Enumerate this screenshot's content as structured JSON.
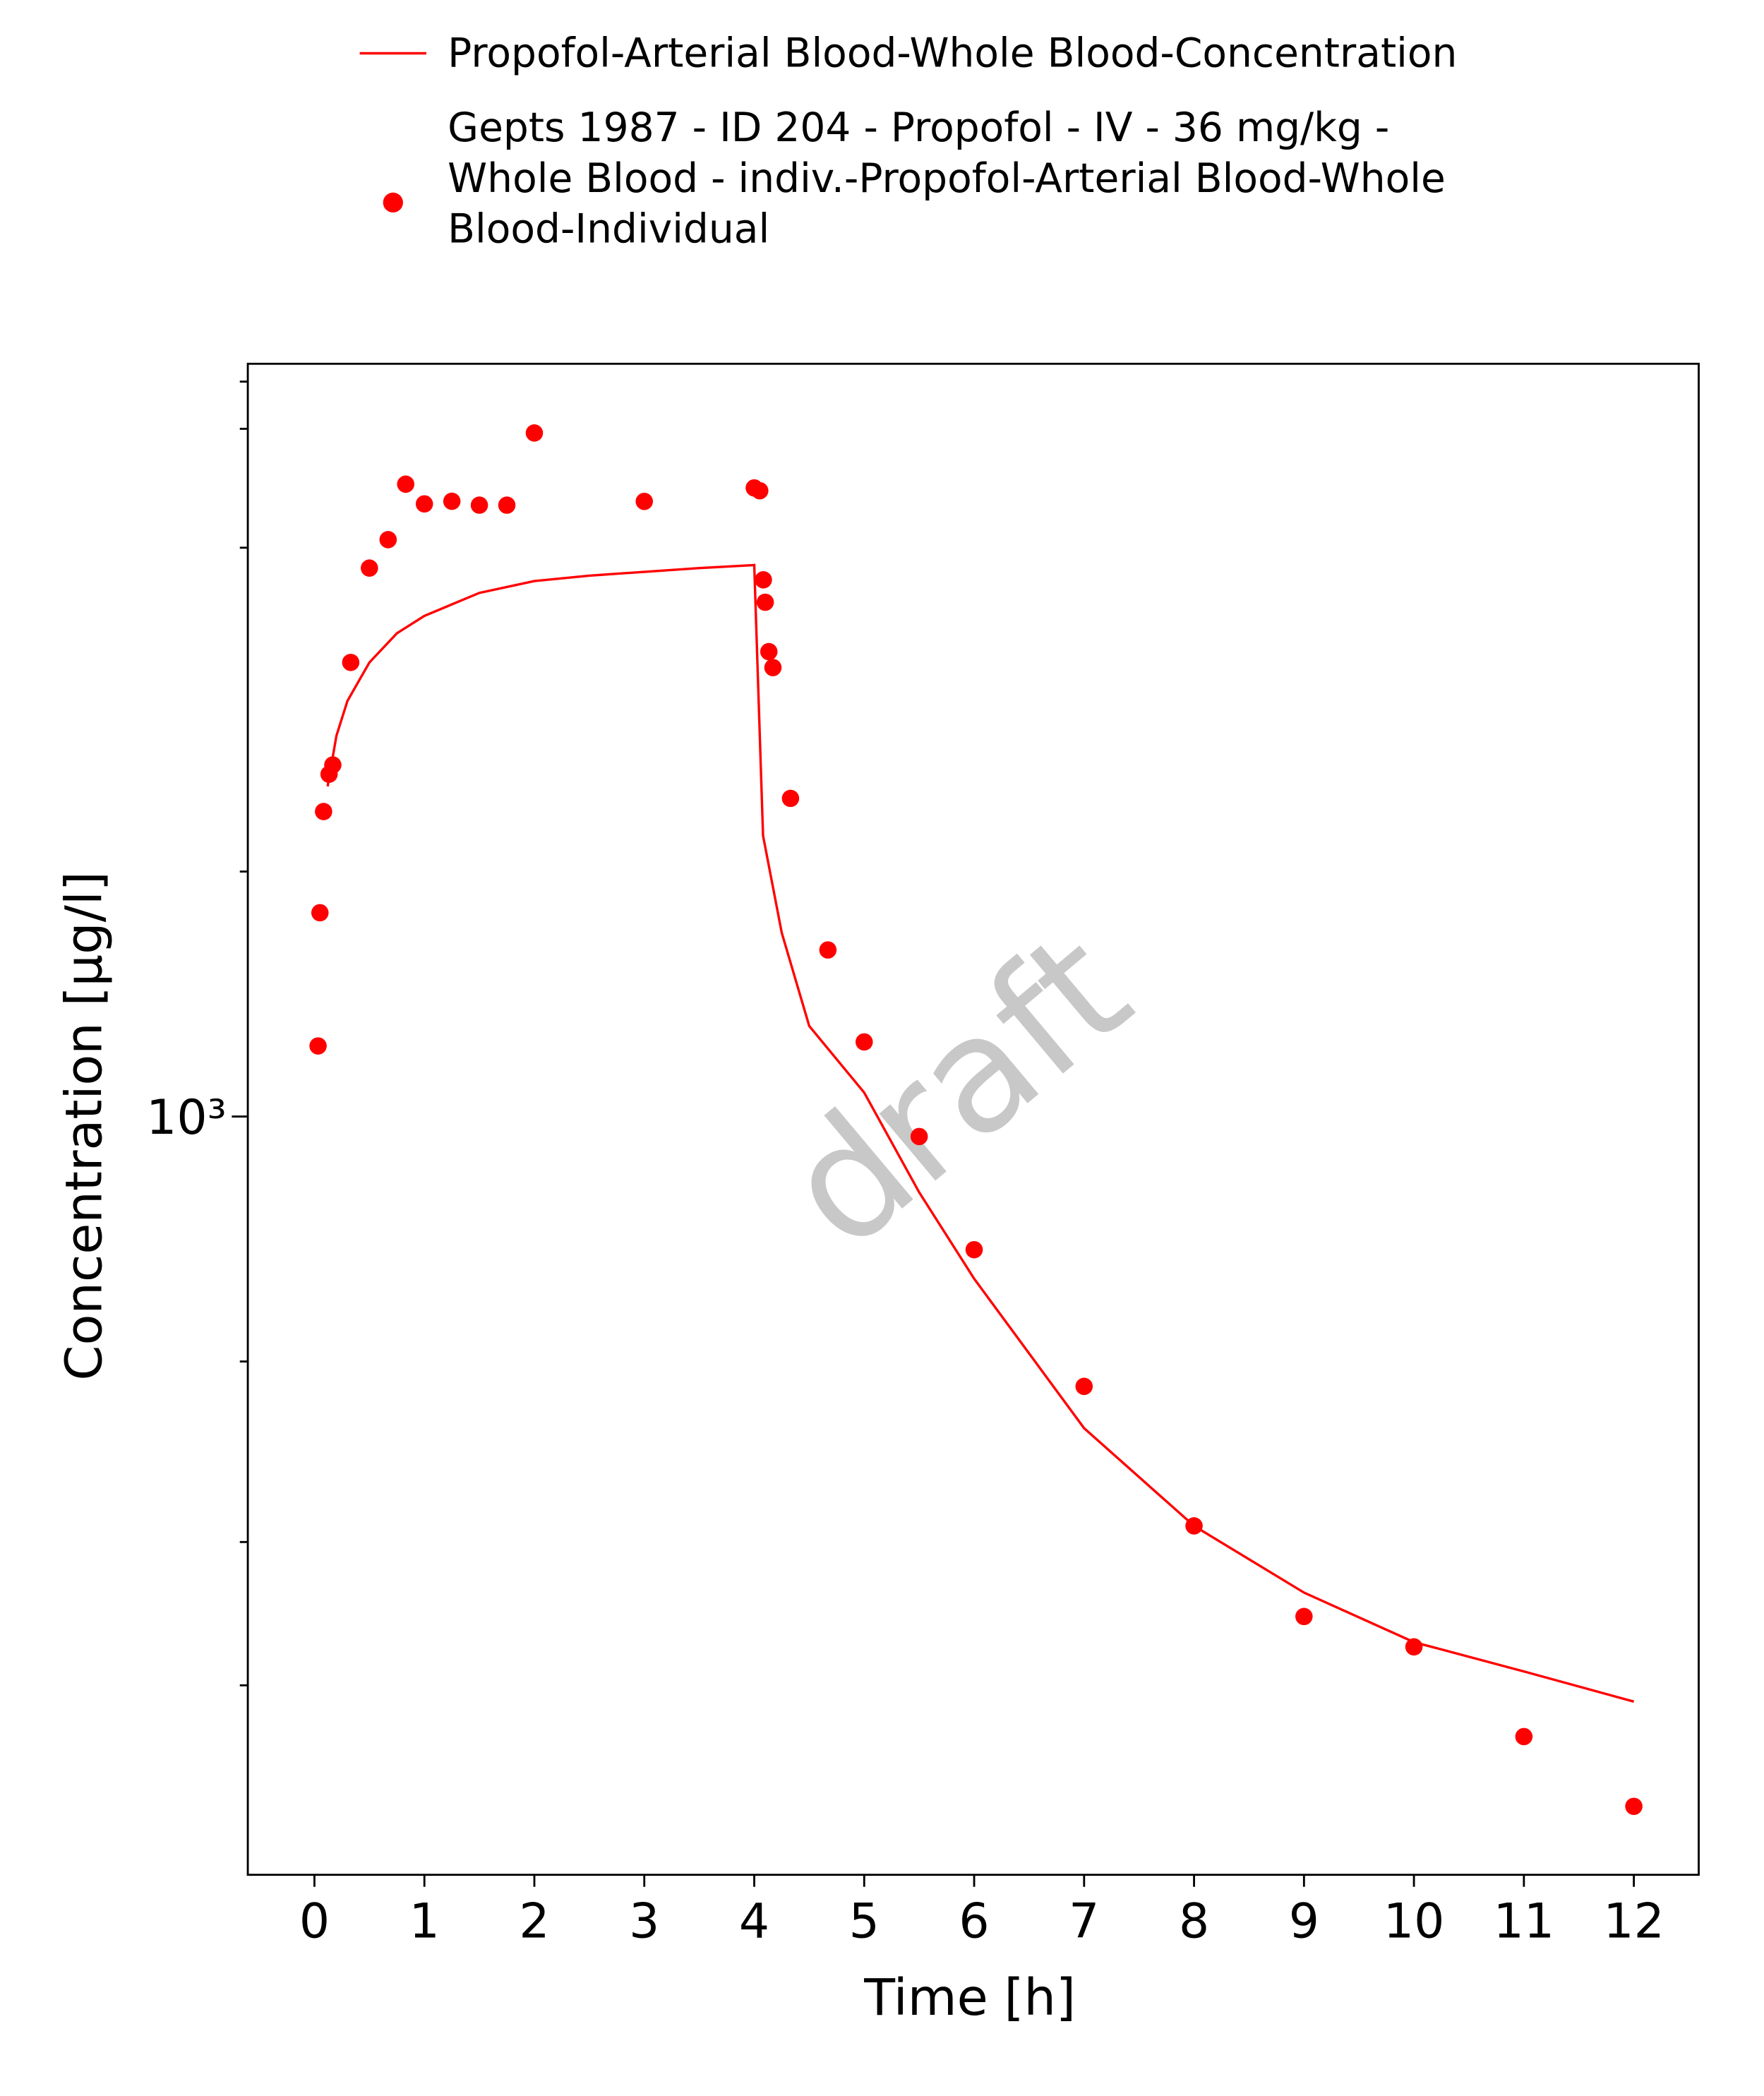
{
  "chart_data": {
    "type": "line+scatter",
    "xlabel": "Time [h]",
    "ylabel": "Concentration [µg/l]",
    "watermark": "draft",
    "xlim": [
      -0.606,
      12.59
    ],
    "xticks": [
      0,
      1,
      2,
      3,
      4,
      5,
      6,
      7,
      8,
      9,
      10,
      11,
      12
    ],
    "ylim": [
      117,
      8414
    ],
    "yscale": "log",
    "yticks": [
      {
        "value": 1000,
        "label": "10³"
      }
    ],
    "yminorticks": [
      200,
      300,
      500,
      2000,
      5000,
      7000,
      8000
    ],
    "series": [
      {
        "name": "Propofol-Arterial Blood-Whole Blood-Concentration",
        "type": "line",
        "color": "#ff0000",
        "x": [
          0.12,
          0.2,
          0.3,
          0.5,
          0.75,
          1,
          1.5,
          2,
          2.5,
          3,
          3.5,
          4,
          4.08,
          4.25,
          4.5,
          5,
          5.5,
          6,
          7,
          8,
          9,
          10,
          11,
          12
        ],
        "values": [
          2545,
          2937,
          3241,
          3614,
          3925,
          4123,
          4400,
          4550,
          4620,
          4670,
          4720,
          4760,
          2214,
          1682,
          1292,
          1070,
          807,
          632,
          414,
          314,
          260,
          226,
          208,
          191
        ]
      },
      {
        "name": "Gepts 1987 - ID 204 - Propofol - IV - 36 mg/kg - Whole Blood - indiv.-Propofol-Arterial Blood-Whole Blood-Individual",
        "type": "scatter",
        "color": "#ff0000",
        "x": [
          0.033,
          0.05,
          0.083,
          0.133,
          0.167,
          0.33,
          0.5,
          0.67,
          0.83,
          1,
          1.25,
          1.5,
          1.75,
          2,
          3,
          4,
          4.05,
          4.083,
          4.1,
          4.133,
          4.17,
          4.33,
          4.67,
          5,
          5.5,
          6,
          7,
          8,
          9,
          10,
          11,
          12
        ],
        "values": [
          1221,
          1780,
          2370,
          2634,
          2704,
          3614,
          4720,
          5115,
          5985,
          5660,
          5702,
          5640,
          5640,
          6918,
          5700,
          5922,
          5875,
          4566,
          4285,
          3726,
          3562,
          2460,
          1602,
          1235,
          945,
          686,
          466,
          314,
          243,
          223,
          173,
          142
        ]
      }
    ]
  }
}
